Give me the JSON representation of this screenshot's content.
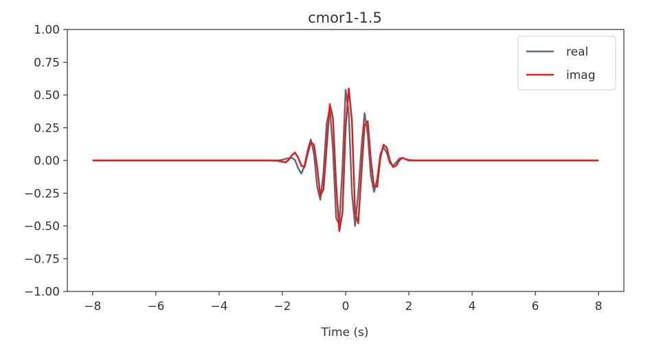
{
  "chart_data": {
    "type": "line",
    "title": "cmor1-1.5",
    "xlabel": "Time (s)",
    "ylabel": "",
    "xlim": [
      -8.8,
      8.8
    ],
    "ylim": [
      -1.0,
      1.0
    ],
    "grid": false,
    "legend_position": "top-right",
    "x_ticks": [
      -8,
      -6,
      -4,
      -2,
      0,
      2,
      4,
      6,
      8
    ],
    "x_tick_labels": [
      "−8",
      "−6",
      "−4",
      "−2",
      "0",
      "2",
      "4",
      "6",
      "8"
    ],
    "y_ticks": [
      1.0,
      0.75,
      0.5,
      0.25,
      0.0,
      -0.25,
      -0.5,
      -0.75,
      -1.0
    ],
    "y_tick_labels": [
      "1.00",
      "0.75",
      "0.50",
      "0.25",
      "0.00",
      "−0.25",
      "−0.50",
      "−0.75",
      "−1.00"
    ],
    "x": [
      -8,
      -2.4,
      -2.2,
      -2.0,
      -1.9,
      -1.8,
      -1.7,
      -1.6,
      -1.5,
      -1.4,
      -1.3,
      -1.2,
      -1.1,
      -1.0,
      -0.9,
      -0.8,
      -0.7,
      -0.6,
      -0.5,
      -0.4,
      -0.3,
      -0.2,
      -0.1,
      0.0,
      0.1,
      0.2,
      0.3,
      0.4,
      0.5,
      0.6,
      0.7,
      0.8,
      0.9,
      1.0,
      1.1,
      1.2,
      1.3,
      1.4,
      1.5,
      1.6,
      1.7,
      1.8,
      1.9,
      2.0,
      2.2,
      2.4,
      8
    ],
    "series": [
      {
        "name": "real",
        "color": "#5b6b7d",
        "values": [
          0.0,
          0.0,
          -0.002,
          0.005,
          0.012,
          0.018,
          0.02,
          0.003,
          -0.06,
          -0.1,
          -0.04,
          0.08,
          0.16,
          0.05,
          -0.2,
          -0.3,
          -0.09,
          0.28,
          0.4,
          0.08,
          -0.44,
          -0.49,
          -0.05,
          0.54,
          0.36,
          -0.25,
          -0.5,
          -0.25,
          0.1,
          0.36,
          0.2,
          -0.12,
          -0.24,
          -0.14,
          0.05,
          0.1,
          0.06,
          -0.02,
          -0.04,
          -0.015,
          0.015,
          0.02,
          0.01,
          0.004,
          0.0,
          0.0,
          0.0
        ]
      },
      {
        "name": "imag",
        "color": "#e81a1a",
        "values": [
          0.0,
          0.0,
          0.0,
          -0.01,
          -0.015,
          0.005,
          0.04,
          0.06,
          0.02,
          -0.04,
          -0.05,
          0.05,
          0.14,
          0.12,
          -0.05,
          -0.27,
          -0.22,
          0.1,
          0.43,
          0.32,
          -0.18,
          -0.54,
          -0.4,
          0.25,
          0.55,
          0.3,
          -0.4,
          -0.48,
          -0.1,
          0.27,
          0.3,
          0.0,
          -0.2,
          -0.2,
          0.02,
          0.12,
          0.1,
          0.0,
          -0.05,
          -0.04,
          0.0,
          0.02,
          0.01,
          0.0,
          0.0,
          0.0,
          0.0
        ]
      }
    ]
  }
}
